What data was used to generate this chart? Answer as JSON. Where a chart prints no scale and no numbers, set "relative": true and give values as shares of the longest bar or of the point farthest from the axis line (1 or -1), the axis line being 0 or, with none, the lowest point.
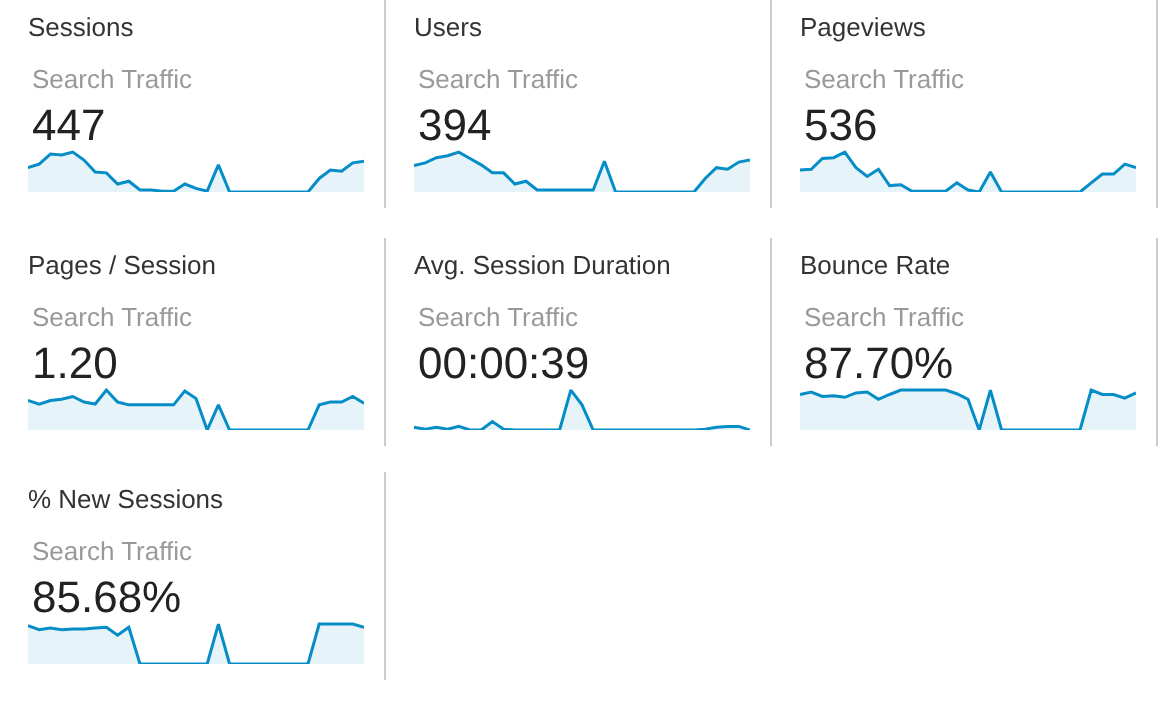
{
  "chart_data": [
    {
      "type": "area",
      "title": "Sessions",
      "subtitle": "Search Traffic",
      "annotations": [
        "447"
      ],
      "relative": true,
      "categories": [
        null,
        null,
        null,
        null,
        null,
        null,
        null,
        null,
        null,
        null,
        null,
        null,
        null,
        null,
        null,
        null,
        null,
        null,
        null,
        null,
        null,
        null,
        null,
        null,
        null,
        null,
        null,
        null,
        null,
        null,
        null
      ],
      "series": [
        {
          "color": "#058dc7",
          "values": [
            0.61,
            0.7,
            0.95,
            0.93,
            1,
            0.8,
            0.5,
            0.48,
            0.2,
            0.27,
            0.05,
            0.05,
            0.02,
            0.02,
            0.2,
            0.09,
            0.02,
            0.68,
            0,
            0,
            0,
            0,
            0,
            0,
            0,
            0,
            0.34,
            0.55,
            0.52,
            0.73,
            0.77
          ]
        }
      ]
    },
    {
      "type": "area",
      "title": "Users",
      "subtitle": "Search Traffic",
      "annotations": [
        "394"
      ],
      "relative": true,
      "categories": [
        null,
        null,
        null,
        null,
        null,
        null,
        null,
        null,
        null,
        null,
        null,
        null,
        null,
        null,
        null,
        null,
        null,
        null,
        null,
        null,
        null,
        null,
        null,
        null,
        null,
        null,
        null,
        null,
        null,
        null,
        null
      ],
      "series": [
        {
          "color": "#058dc7",
          "values": [
            0.66,
            0.73,
            0.86,
            0.91,
            1,
            0.84,
            0.68,
            0.48,
            0.48,
            0.2,
            0.27,
            0.05,
            0.05,
            0.05,
            0.05,
            0.05,
            0.05,
            0.77,
            0,
            0,
            0,
            0,
            0,
            0,
            0,
            0,
            0.34,
            0.61,
            0.57,
            0.75,
            0.8
          ]
        }
      ]
    },
    {
      "type": "area",
      "title": "Pageviews",
      "subtitle": "Search Traffic",
      "annotations": [
        "536"
      ],
      "relative": true,
      "categories": [
        null,
        null,
        null,
        null,
        null,
        null,
        null,
        null,
        null,
        null,
        null,
        null,
        null,
        null,
        null,
        null,
        null,
        null,
        null,
        null,
        null,
        null,
        null,
        null,
        null,
        null,
        null,
        null,
        null,
        null,
        null
      ],
      "series": [
        {
          "color": "#058dc7",
          "values": [
            0.55,
            0.57,
            0.84,
            0.86,
            1,
            0.61,
            0.39,
            0.57,
            0.16,
            0.18,
            0.02,
            0.02,
            0.02,
            0.02,
            0.23,
            0.05,
            0,
            0.5,
            0,
            0,
            0,
            0,
            0,
            0,
            0,
            0,
            0.23,
            0.45,
            0.45,
            0.7,
            0.61
          ]
        }
      ]
    },
    {
      "type": "area",
      "title": "Pages / Session",
      "subtitle": "Search Traffic",
      "annotations": [
        "1.20"
      ],
      "relative": true,
      "categories": [
        null,
        null,
        null,
        null,
        null,
        null,
        null,
        null,
        null,
        null,
        null,
        null,
        null,
        null,
        null,
        null,
        null,
        null,
        null,
        null,
        null,
        null,
        null,
        null,
        null,
        null,
        null,
        null,
        null,
        null,
        null
      ],
      "series": [
        {
          "color": "#058dc7",
          "values": [
            0.74,
            0.65,
            0.74,
            0.77,
            0.84,
            0.7,
            0.65,
            1,
            0.7,
            0.63,
            0.63,
            0.63,
            0.63,
            0.63,
            0.98,
            0.79,
            0,
            0.63,
            0,
            0,
            0,
            0,
            0,
            0,
            0,
            0,
            0.63,
            0.7,
            0.7,
            0.84,
            0.67
          ]
        }
      ]
    },
    {
      "type": "area",
      "title": "Avg. Session Duration",
      "subtitle": "Search Traffic",
      "annotations": [
        "00:00:39"
      ],
      "relative": true,
      "categories": [
        null,
        null,
        null,
        null,
        null,
        null,
        null,
        null,
        null,
        null,
        null,
        null,
        null,
        null,
        null,
        null,
        null,
        null,
        null,
        null,
        null,
        null,
        null,
        null,
        null,
        null,
        null,
        null,
        null,
        null,
        null
      ],
      "series": [
        {
          "color": "#058dc7",
          "values": [
            0.07,
            0.02,
            0.07,
            0.02,
            0.09,
            0,
            0,
            0.21,
            0.02,
            0,
            0,
            0,
            0,
            0,
            1,
            0.63,
            0,
            0,
            0,
            0,
            0,
            0,
            0,
            0,
            0,
            0,
            0.02,
            0.07,
            0.09,
            0.09,
            0
          ]
        }
      ]
    },
    {
      "type": "area",
      "title": "Bounce Rate",
      "subtitle": "Search Traffic",
      "annotations": [
        "87.70%"
      ],
      "relative": true,
      "categories": [
        null,
        null,
        null,
        null,
        null,
        null,
        null,
        null,
        null,
        null,
        null,
        null,
        null,
        null,
        null,
        null,
        null,
        null,
        null,
        null,
        null,
        null,
        null,
        null,
        null,
        null,
        null,
        null,
        null,
        null,
        null
      ],
      "series": [
        {
          "color": "#058dc7",
          "values": [
            0.89,
            0.95,
            0.84,
            0.86,
            0.82,
            0.93,
            0.95,
            0.77,
            0.89,
            1,
            1,
            1,
            1,
            1,
            0.91,
            0.77,
            0,
            1,
            0,
            0,
            0,
            0,
            0,
            0,
            0,
            0,
            1,
            0.89,
            0.89,
            0.8,
            0.93
          ]
        }
      ]
    },
    {
      "type": "area",
      "title": "% New Sessions",
      "subtitle": "Search Traffic",
      "annotations": [
        "85.68%"
      ],
      "relative": true,
      "categories": [
        null,
        null,
        null,
        null,
        null,
        null,
        null,
        null,
        null,
        null,
        null,
        null,
        null,
        null,
        null,
        null,
        null,
        null,
        null,
        null,
        null,
        null,
        null,
        null,
        null,
        null,
        null,
        null,
        null,
        null,
        null
      ],
      "series": [
        {
          "color": "#058dc7",
          "values": [
            0.96,
            0.86,
            0.9,
            0.86,
            0.88,
            0.88,
            0.9,
            0.92,
            0.72,
            0.92,
            0,
            0,
            0,
            0,
            0,
            0,
            0,
            1,
            0,
            0,
            0,
            0,
            0,
            0,
            0,
            0,
            1,
            1,
            1,
            1,
            0.92
          ]
        }
      ]
    }
  ]
}
